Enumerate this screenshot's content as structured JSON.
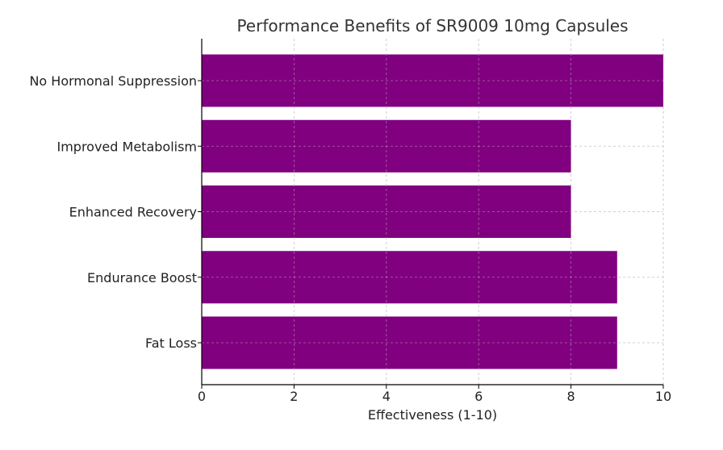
{
  "chart_data": {
    "type": "bar",
    "orientation": "horizontal",
    "title": "Performance Benefits of SR9009 10mg Capsules",
    "xlabel": "Effectiveness (1-10)",
    "ylabel": "",
    "categories": [
      "Fat Loss",
      "Endurance Boost",
      "Enhanced Recovery",
      "Improved Metabolism",
      "No Hormonal Suppression"
    ],
    "values": [
      9,
      9,
      8,
      8,
      10
    ],
    "xlim": [
      0,
      10
    ],
    "xticks": [
      0,
      2,
      4,
      6,
      8,
      10
    ],
    "grid": true,
    "bar_color": "#800080"
  }
}
